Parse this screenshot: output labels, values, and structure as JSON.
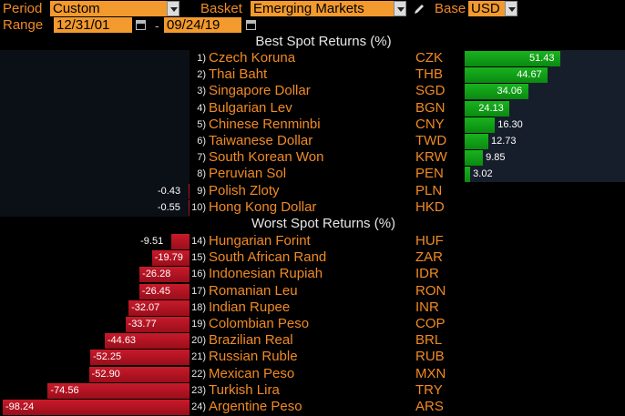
{
  "toolbar": {
    "period_label": "Period",
    "period_value": "Custom",
    "basket_label": "Basket",
    "basket_value": "Emerging Markets",
    "base_label": "Base",
    "base_value": "USD",
    "range_label": "Range",
    "range_start": "12/31/01",
    "range_separator": "-",
    "range_end": "09/24/19"
  },
  "best": {
    "title": "Best Spot Returns (%)",
    "rows": [
      {
        "rank": "1)",
        "name": "Czech Koruna",
        "code": "CZK",
        "value": 51.43,
        "label": "51.43"
      },
      {
        "rank": "2)",
        "name": "Thai Baht",
        "code": "THB",
        "value": 44.67,
        "label": "44.67"
      },
      {
        "rank": "3)",
        "name": "Singapore Dollar",
        "code": "SGD",
        "value": 34.06,
        "label": "34.06"
      },
      {
        "rank": "4)",
        "name": "Bulgarian Lev",
        "code": "BGN",
        "value": 24.13,
        "label": "24.13"
      },
      {
        "rank": "5)",
        "name": "Chinese Renminbi",
        "code": "CNY",
        "value": 16.3,
        "label": "16.30"
      },
      {
        "rank": "6)",
        "name": "Taiwanese Dollar",
        "code": "TWD",
        "value": 12.73,
        "label": "12.73"
      },
      {
        "rank": "7)",
        "name": "South Korean Won",
        "code": "KRW",
        "value": 9.85,
        "label": "9.85"
      },
      {
        "rank": "8)",
        "name": "Peruvian Sol",
        "code": "PEN",
        "value": 3.02,
        "label": "3.02"
      },
      {
        "rank": "9)",
        "name": "Polish Zloty",
        "code": "PLN",
        "value": -0.43,
        "label": "-0.43"
      },
      {
        "rank": "10)",
        "name": "Hong Kong Dollar",
        "code": "HKD",
        "value": -0.55,
        "label": "-0.55"
      }
    ]
  },
  "worst": {
    "title": "Worst Spot Returns (%)",
    "rows": [
      {
        "rank": "14)",
        "name": "Hungarian Forint",
        "code": "HUF",
        "value": -9.51,
        "label": "-9.51"
      },
      {
        "rank": "15)",
        "name": "South African Rand",
        "code": "ZAR",
        "value": -19.79,
        "label": "-19.79"
      },
      {
        "rank": "16)",
        "name": "Indonesian Rupiah",
        "code": "IDR",
        "value": -26.28,
        "label": "-26.28"
      },
      {
        "rank": "17)",
        "name": "Romanian Leu",
        "code": "RON",
        "value": -26.45,
        "label": "-26.45"
      },
      {
        "rank": "18)",
        "name": "Indian Rupee",
        "code": "INR",
        "value": -32.07,
        "label": "-32.07"
      },
      {
        "rank": "19)",
        "name": "Colombian Peso",
        "code": "COP",
        "value": -33.77,
        "label": "-33.77"
      },
      {
        "rank": "20)",
        "name": "Brazilian Real",
        "code": "BRL",
        "value": -44.63,
        "label": "-44.63"
      },
      {
        "rank": "21)",
        "name": "Russian Ruble",
        "code": "RUB",
        "value": -52.25,
        "label": "-52.25"
      },
      {
        "rank": "22)",
        "name": "Mexican Peso",
        "code": "MXN",
        "value": -52.9,
        "label": "-52.90"
      },
      {
        "rank": "23)",
        "name": "Turkish Lira",
        "code": "TRY",
        "value": -74.56,
        "label": "-74.56"
      },
      {
        "rank": "24)",
        "name": "Argentine Peso",
        "code": "ARS",
        "value": -98.24,
        "label": "-98.24"
      }
    ]
  },
  "colors": {
    "accent": "#f08a24",
    "field_bg": "#f29a2e",
    "positive": "#19b21f",
    "negative": "#c81a2a"
  },
  "icons": [
    "dropdown-arrow-icon",
    "pencil-icon",
    "calendar-icon"
  ]
}
